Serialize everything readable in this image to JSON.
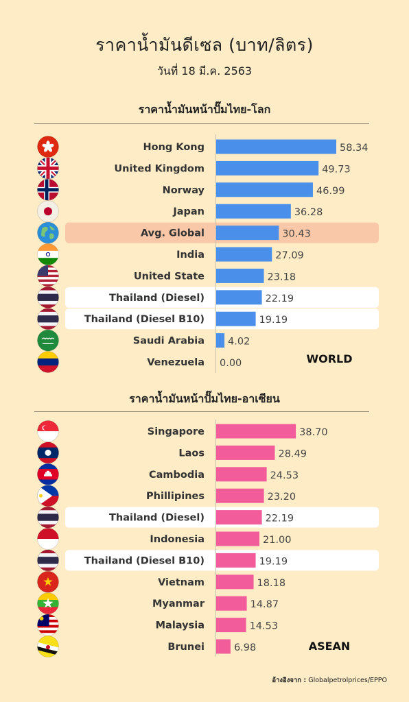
{
  "title": "ราคาน้ำมันดีเซล (บาท/ลิตร)",
  "subtitle": "วันที่ 18 มี.ค. 2563",
  "source_label": "อ้างอิงจาก :",
  "source_text": "Globalpetrolprices/EPPO",
  "chart_data": [
    {
      "type": "bar",
      "orientation": "horizontal",
      "title": "ราคาน้ำมันหน้าปั๊มไทย-โลก",
      "tag": "WORLD",
      "bar_color": "#4a8fea",
      "categories": [
        "Hong Kong",
        "United Kingdom",
        "Norway",
        "Japan",
        "Avg. Global",
        "India",
        "United State",
        "Thailand (Diesel)",
        "Thailand (Diesel B10)",
        "Saudi Arabia",
        "Venezuela"
      ],
      "values": [
        58.34,
        49.73,
        46.99,
        36.28,
        30.43,
        27.09,
        23.18,
        22.19,
        19.19,
        4.02,
        0.0
      ],
      "value_labels": [
        "58.34",
        "49.73",
        "46.99",
        "36.28",
        "30.43",
        "27.09",
        "23.18",
        "22.19",
        "19.19",
        "4.02",
        "0.00"
      ],
      "icons": [
        "hong-kong-flag-icon",
        "united-kingdom-flag-icon",
        "norway-flag-icon",
        "japan-flag-icon",
        "globe-icon",
        "india-flag-icon",
        "united-states-flag-icon",
        "thailand-flag-icon",
        "thailand-flag-icon",
        "saudi-arabia-flag-icon",
        "venezuela-flag-icon"
      ],
      "highlights": {
        "Avg. Global": "#f8c8a8",
        "Thailand (Diesel)": "#ffffff",
        "Thailand (Diesel B10)": "#ffffff"
      }
    },
    {
      "type": "bar",
      "orientation": "horizontal",
      "title": "ราคาน้ำมันหน้าปั๊มไทย-อาเซียน",
      "tag": "ASEAN",
      "bar_color": "#f25c9a",
      "categories": [
        "Singapore",
        "Laos",
        "Cambodia",
        "Phillipines",
        "Thailand (Diesel)",
        "Indonesia",
        "Thailand (Diesel B10)",
        "Vietnam",
        "Myanmar",
        "Malaysia",
        "Brunei"
      ],
      "values": [
        38.7,
        28.49,
        24.53,
        23.2,
        22.19,
        21.0,
        19.19,
        18.18,
        14.87,
        14.53,
        6.98
      ],
      "value_labels": [
        "38.70",
        "28.49",
        "24.53",
        "23.20",
        "22.19",
        "21.00",
        "19.19",
        "18.18",
        "14.87",
        "14.53",
        "6.98"
      ],
      "icons": [
        "singapore-flag-icon",
        "laos-flag-icon",
        "cambodia-flag-icon",
        "philippines-flag-icon",
        "thailand-flag-icon",
        "indonesia-flag-icon",
        "thailand-flag-icon",
        "vietnam-flag-icon",
        "myanmar-flag-icon",
        "malaysia-flag-icon",
        "brunei-flag-icon"
      ],
      "highlights": {
        "Thailand (Diesel)": "#ffffff",
        "Thailand (Diesel B10)": "#ffffff"
      }
    }
  ]
}
